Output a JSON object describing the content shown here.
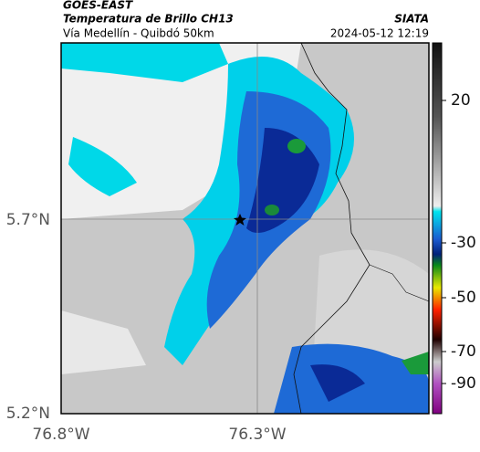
{
  "header": {
    "source": "GOES-EAST",
    "title": "Temperatura de Brillo CH13",
    "subtitle": "Vía Medellín - Quibdó 50km",
    "brand": "SIATA",
    "timestamp": "2024-05-12 12:19"
  },
  "axes": {
    "lat_labels": [
      "5.7°N",
      "5.2°N"
    ],
    "lon_labels": [
      "76.8°W",
      "76.3°W"
    ]
  },
  "colorbar": {
    "ticks": [
      "20",
      "-30",
      "-50",
      "-70",
      "-90"
    ]
  }
}
